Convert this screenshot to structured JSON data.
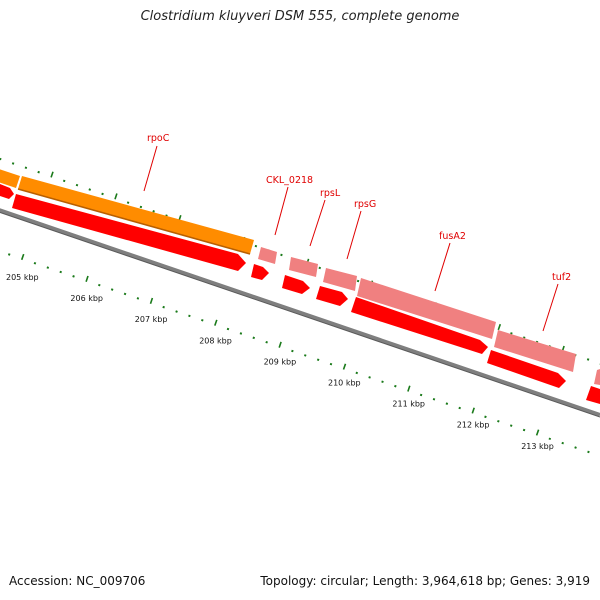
{
  "title": "Clostridium kluyveri DSM 555, complete genome",
  "footer": {
    "accession": "Accession: NC_009706",
    "info": "Topology: circular; Length: 3,964,618 bp; Genes: 3,919"
  },
  "colors": {
    "backbone": "#7f7f7f",
    "operon": "#ff8c00",
    "gene": "#ff0000",
    "protein": "#f08080",
    "label": "#e00000",
    "tick": "#1a7a1a"
  },
  "ruler_labels": [
    "205 kbp",
    "206 kbp",
    "207 kbp",
    "208 kbp",
    "209 kbp",
    "210 kbp",
    "211 kbp",
    "212 kbp",
    "213 kbp"
  ],
  "genes": [
    {
      "label": "rpoC"
    },
    {
      "label": "CKL_0218"
    },
    {
      "label": "rpsL"
    },
    {
      "label": "rpsG"
    },
    {
      "label": "fusA2"
    },
    {
      "label": "tuf2"
    }
  ]
}
